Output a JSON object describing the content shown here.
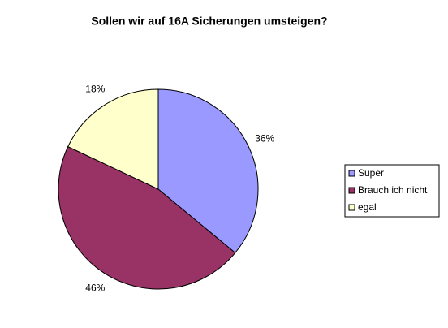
{
  "chart_data": {
    "type": "pie",
    "title": "Sollen wir auf 16A Sicherungen umsteigen?",
    "categories": [
      "Super",
      "Brauch ich nicht",
      "egal"
    ],
    "values": [
      36,
      46,
      18
    ],
    "value_labels": [
      "36%",
      "46%",
      "18%"
    ],
    "colors": [
      "#9999ff",
      "#993366",
      "#ffffcc"
    ],
    "legend": "right"
  }
}
